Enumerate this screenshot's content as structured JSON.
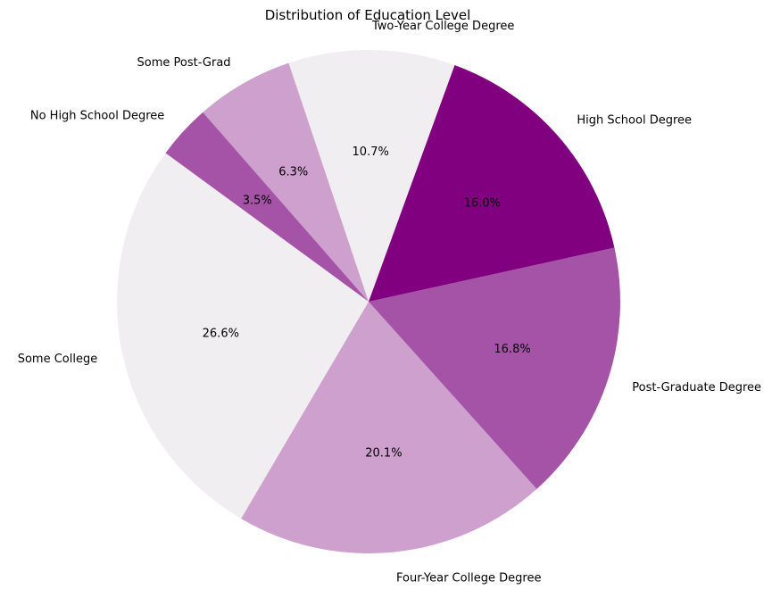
{
  "chart_data": {
    "type": "pie",
    "title": "Distribution of Education Level",
    "categories": [
      "Two-Year College Degree",
      "Some Post-Grad",
      "No High School Degree",
      "Some College",
      "Four-Year College Degree",
      "Post-Graduate Degree",
      "High School Degree"
    ],
    "values": [
      10.7,
      6.3,
      3.5,
      26.6,
      20.1,
      16.8,
      16.0
    ],
    "value_labels": [
      "10.7%",
      "6.3%",
      "3.5%",
      "26.6%",
      "20.1%",
      "16.8%",
      "16.0%"
    ],
    "colors": [
      "#f1eef2",
      "#cda0cd",
      "#a553a6",
      "#f1eef2",
      "#cda0cd",
      "#a553a6",
      "#800080"
    ],
    "start_angle_deg": 70,
    "direction": "counterclockwise",
    "legend": "none"
  }
}
